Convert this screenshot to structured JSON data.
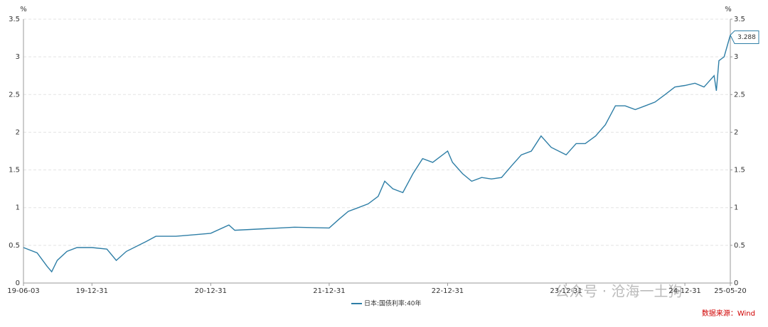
{
  "chart_data": {
    "type": "line",
    "y_unit": "%",
    "y2_unit": "%",
    "x": [
      "19-06-03",
      "19-07-15",
      "19-08-15",
      "19-08-29",
      "19-09-15",
      "19-10-15",
      "19-11-15",
      "19-12-31",
      "20-02-15",
      "20-03-15",
      "20-04-15",
      "20-06-15",
      "20-07-15",
      "20-09-15",
      "20-12-31",
      "21-02-25",
      "21-03-15",
      "21-06-15",
      "21-09-15",
      "21-12-31",
      "22-01-31",
      "22-02-28",
      "22-03-31",
      "22-04-30",
      "22-05-31",
      "22-06-20",
      "22-07-15",
      "22-08-15",
      "22-09-15",
      "22-10-15",
      "22-11-15",
      "22-12-31",
      "23-01-15",
      "23-02-15",
      "23-03-15",
      "23-04-15",
      "23-05-15",
      "23-06-15",
      "23-07-15",
      "23-08-15",
      "23-09-15",
      "23-10-15",
      "23-11-15",
      "23-12-31",
      "24-01-31",
      "24-02-28",
      "24-03-31",
      "24-04-30",
      "24-05-31",
      "24-06-30",
      "24-07-31",
      "24-08-31",
      "24-09-30",
      "24-10-31",
      "24-11-30",
      "24-12-31",
      "25-01-31",
      "25-02-28",
      "25-03-31",
      "25-04-07",
      "25-04-15",
      "25-05-01",
      "25-05-20"
    ],
    "series": [
      {
        "name": "日本:国债利率:40年",
        "color": "#2e7ea6",
        "values": [
          0.47,
          0.4,
          0.22,
          0.15,
          0.3,
          0.42,
          0.47,
          0.47,
          0.45,
          0.3,
          0.42,
          0.55,
          0.62,
          0.62,
          0.66,
          0.77,
          0.7,
          0.72,
          0.74,
          0.73,
          0.85,
          0.95,
          1.0,
          1.05,
          1.15,
          1.35,
          1.25,
          1.2,
          1.45,
          1.65,
          1.6,
          1.75,
          1.6,
          1.45,
          1.35,
          1.4,
          1.38,
          1.4,
          1.55,
          1.7,
          1.75,
          1.95,
          1.8,
          1.7,
          1.85,
          1.85,
          1.95,
          2.1,
          2.35,
          2.35,
          2.3,
          2.35,
          2.4,
          2.5,
          2.6,
          2.62,
          2.65,
          2.6,
          2.75,
          2.55,
          2.95,
          3.0,
          3.288
        ]
      }
    ],
    "xlim": [
      "19-06-03",
      "25-05-20"
    ],
    "xticks": [
      "19-06-03",
      "19-12-31",
      "20-12-31",
      "21-12-31",
      "22-12-31",
      "23-12-31",
      "24-12-31",
      "25-05-20"
    ],
    "ylim": [
      0,
      3.5
    ],
    "yticks": [
      0,
      0.5,
      1,
      1.5,
      2,
      2.5,
      3,
      3.5
    ],
    "y2lim": [
      0,
      3.5
    ],
    "y2ticks": [
      0,
      0.5,
      1,
      1.5,
      2,
      2.5,
      3,
      3.5
    ],
    "grid": true,
    "watermark": "公众号 · 沧海一土狗",
    "source": "数据来源：Wind"
  }
}
